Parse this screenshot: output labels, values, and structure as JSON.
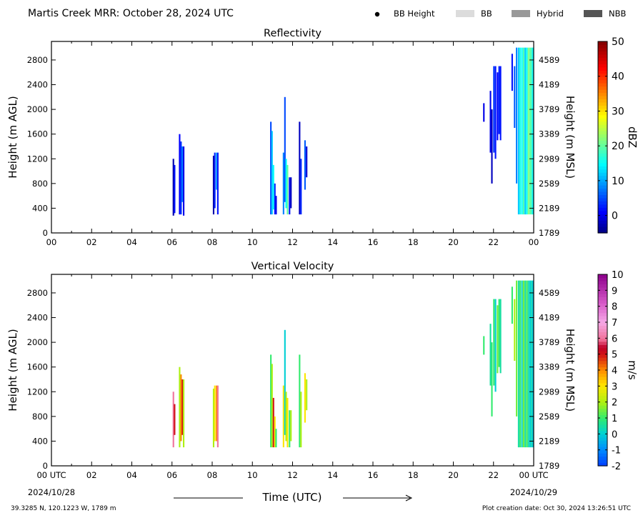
{
  "header": {
    "title": "Martis Creek MRR:  October 28, 2024 UTC"
  },
  "legend": {
    "placement": "top-right",
    "items": [
      {
        "label": "BB Height",
        "kind": "dot",
        "color": "#000000"
      },
      {
        "label": "BB",
        "kind": "swatch",
        "color": "#dcdcdc"
      },
      {
        "label": "Hybrid",
        "kind": "swatch",
        "color": "#999999"
      },
      {
        "label": "NBB",
        "kind": "swatch",
        "color": "#555555"
      }
    ]
  },
  "footer": {
    "location": "39.3285 N, 120.1223 W, 1789 m",
    "creation": "Plot creation date: Oct 30, 2024 13:26:51 UTC",
    "xlabel": "Time (UTC)",
    "start_date": "2024/10/28",
    "end_date": "2024/10/29"
  },
  "chart_data": [
    {
      "type": "heatmap",
      "title": "Reflectivity",
      "ylabel": "Height (m AGL)",
      "y2label": "Height (m MSL)",
      "xlim": [
        0,
        24
      ],
      "ylim": [
        0,
        3100
      ],
      "xticks": [
        "00",
        "02",
        "04",
        "06",
        "08",
        "10",
        "12",
        "14",
        "16",
        "18",
        "20",
        "22",
        "00"
      ],
      "yticks": [
        0,
        400,
        800,
        1200,
        1600,
        2000,
        2400,
        2800
      ],
      "y2ticks": [
        1789,
        2189,
        2589,
        2989,
        3389,
        3789,
        4189,
        4589
      ],
      "colorbar": {
        "label": "dBZ",
        "min": -5,
        "max": 50,
        "ticks": [
          0,
          10,
          20,
          30,
          40,
          50
        ]
      },
      "grid": false,
      "columns": [
        {
          "t": 6.07,
          "y0": 280,
          "y1": 1200,
          "v": -3
        },
        {
          "t": 6.13,
          "y0": 320,
          "y1": 1100,
          "v": 2
        },
        {
          "t": 6.38,
          "y0": 300,
          "y1": 1600,
          "v": 1
        },
        {
          "t": 6.45,
          "y0": 300,
          "y1": 1480,
          "v": 4
        },
        {
          "t": 6.52,
          "y0": 500,
          "y1": 1400,
          "v": 8
        },
        {
          "t": 6.58,
          "y0": 280,
          "y1": 1400,
          "v": 0
        },
        {
          "t": 8.07,
          "y0": 300,
          "y1": 1250,
          "v": -3
        },
        {
          "t": 8.13,
          "y0": 400,
          "y1": 1300,
          "v": 3
        },
        {
          "t": 8.22,
          "y0": 700,
          "y1": 1300,
          "v": 10
        },
        {
          "t": 8.28,
          "y0": 300,
          "y1": 1300,
          "v": 2
        },
        {
          "t": 10.92,
          "y0": 300,
          "y1": 1800,
          "v": 5
        },
        {
          "t": 10.98,
          "y0": 300,
          "y1": 1650,
          "v": 12
        },
        {
          "t": 11.05,
          "y0": 380,
          "y1": 1100,
          "v": 15
        },
        {
          "t": 11.12,
          "y0": 300,
          "y1": 800,
          "v": 3
        },
        {
          "t": 11.18,
          "y0": 300,
          "y1": 600,
          "v": 0
        },
        {
          "t": 11.55,
          "y0": 300,
          "y1": 1300,
          "v": 8
        },
        {
          "t": 11.62,
          "y0": 500,
          "y1": 2200,
          "v": 5
        },
        {
          "t": 11.68,
          "y0": 400,
          "y1": 1200,
          "v": 15
        },
        {
          "t": 11.75,
          "y0": 300,
          "y1": 1100,
          "v": 20
        },
        {
          "t": 11.85,
          "y0": 300,
          "y1": 900,
          "v": 2
        },
        {
          "t": 11.92,
          "y0": 400,
          "y1": 900,
          "v": -2
        },
        {
          "t": 12.35,
          "y0": 300,
          "y1": 1800,
          "v": -2
        },
        {
          "t": 12.42,
          "y0": 300,
          "y1": 1200,
          "v": 3
        },
        {
          "t": 12.62,
          "y0": 700,
          "y1": 1500,
          "v": 6
        },
        {
          "t": 12.7,
          "y0": 900,
          "y1": 1400,
          "v": -1
        },
        {
          "t": 21.52,
          "y0": 1800,
          "y1": 2100,
          "v": 0
        },
        {
          "t": 21.85,
          "y0": 1300,
          "y1": 2300,
          "v": 0
        },
        {
          "t": 21.92,
          "y0": 800,
          "y1": 2000,
          "v": -2
        },
        {
          "t": 22.02,
          "y0": 1300,
          "y1": 2700,
          "v": 4
        },
        {
          "t": 22.1,
          "y0": 1200,
          "y1": 2700,
          "v": 2
        },
        {
          "t": 22.2,
          "y0": 1500,
          "y1": 2600,
          "v": 1
        },
        {
          "t": 22.28,
          "y0": 1600,
          "y1": 2700,
          "v": 3
        },
        {
          "t": 22.35,
          "y0": 1500,
          "y1": 2700,
          "v": 2
        },
        {
          "t": 22.93,
          "y0": 2300,
          "y1": 2900,
          "v": 2
        },
        {
          "t": 23.05,
          "y0": 1700,
          "y1": 2700,
          "v": 6
        },
        {
          "t": 23.15,
          "y0": 800,
          "y1": 3000,
          "v": 8
        },
        {
          "t": 23.25,
          "y0": 300,
          "y1": 3000,
          "v": 12
        },
        {
          "t": 23.33,
          "y0": 300,
          "y1": 3000,
          "v": 16
        },
        {
          "t": 23.42,
          "y0": 300,
          "y1": 3000,
          "v": 15
        },
        {
          "t": 23.5,
          "y0": 300,
          "y1": 3000,
          "v": 19
        },
        {
          "t": 23.58,
          "y0": 300,
          "y1": 3000,
          "v": 12
        },
        {
          "t": 23.66,
          "y0": 300,
          "y1": 3000,
          "v": 15
        },
        {
          "t": 23.74,
          "y0": 300,
          "y1": 3000,
          "v": 22
        },
        {
          "t": 23.82,
          "y0": 300,
          "y1": 3000,
          "v": 20
        },
        {
          "t": 23.9,
          "y0": 300,
          "y1": 3000,
          "v": 18
        },
        {
          "t": 23.97,
          "y0": 300,
          "y1": 3000,
          "v": 14
        }
      ]
    },
    {
      "type": "heatmap",
      "title": "Vertical Velocity",
      "ylabel": "Height (m AGL)",
      "y2label": "Height (m MSL)",
      "xlim": [
        0,
        24
      ],
      "ylim": [
        0,
        3100
      ],
      "xticks": [
        "00 UTC",
        "02",
        "04",
        "06",
        "08",
        "10",
        "12",
        "14",
        "16",
        "18",
        "20",
        "22",
        "00 UTC"
      ],
      "yticks": [
        0,
        400,
        800,
        1200,
        1600,
        2000,
        2400,
        2800
      ],
      "y2ticks": [
        1789,
        2189,
        2589,
        2989,
        3389,
        3789,
        4189,
        4589
      ],
      "colorbar": {
        "label": "m/s",
        "min": -2,
        "max": 10,
        "ticks": [
          -2,
          -1,
          0,
          1,
          2,
          3,
          4,
          5,
          6,
          7,
          8,
          9,
          10
        ]
      },
      "grid": false,
      "columns": [
        {
          "t": 6.07,
          "y0": 300,
          "y1": 1200,
          "v": 6
        },
        {
          "t": 6.13,
          "y0": 500,
          "y1": 1000,
          "v": 5
        },
        {
          "t": 6.38,
          "y0": 300,
          "y1": 1600,
          "v": 2
        },
        {
          "t": 6.45,
          "y0": 400,
          "y1": 1480,
          "v": 4
        },
        {
          "t": 6.52,
          "y0": 500,
          "y1": 1400,
          "v": 5
        },
        {
          "t": 6.58,
          "y0": 300,
          "y1": 1400,
          "v": 2
        },
        {
          "t": 8.07,
          "y0": 300,
          "y1": 1250,
          "v": 2
        },
        {
          "t": 8.13,
          "y0": 400,
          "y1": 1300,
          "v": 3
        },
        {
          "t": 8.22,
          "y0": 400,
          "y1": 1300,
          "v": 4
        },
        {
          "t": 8.28,
          "y0": 300,
          "y1": 1300,
          "v": 6
        },
        {
          "t": 10.92,
          "y0": 300,
          "y1": 1800,
          "v": 1
        },
        {
          "t": 10.98,
          "y0": 300,
          "y1": 1650,
          "v": 2
        },
        {
          "t": 11.05,
          "y0": 300,
          "y1": 1100,
          "v": 5
        },
        {
          "t": 11.12,
          "y0": 300,
          "y1": 800,
          "v": 3
        },
        {
          "t": 11.18,
          "y0": 300,
          "y1": 600,
          "v": 1
        },
        {
          "t": 11.55,
          "y0": 300,
          "y1": 1300,
          "v": 3
        },
        {
          "t": 11.62,
          "y0": 500,
          "y1": 2200,
          "v": 0
        },
        {
          "t": 11.68,
          "y0": 400,
          "y1": 1200,
          "v": 2
        },
        {
          "t": 11.75,
          "y0": 300,
          "y1": 1100,
          "v": 3
        },
        {
          "t": 11.85,
          "y0": 300,
          "y1": 900,
          "v": 1
        },
        {
          "t": 11.92,
          "y0": 400,
          "y1": 900,
          "v": 2
        },
        {
          "t": 12.35,
          "y0": 300,
          "y1": 1800,
          "v": 1
        },
        {
          "t": 12.42,
          "y0": 300,
          "y1": 1200,
          "v": 2
        },
        {
          "t": 12.62,
          "y0": 700,
          "y1": 1500,
          "v": 3
        },
        {
          "t": 12.7,
          "y0": 900,
          "y1": 1400,
          "v": 2
        },
        {
          "t": 21.52,
          "y0": 1800,
          "y1": 2100,
          "v": 1
        },
        {
          "t": 21.85,
          "y0": 1300,
          "y1": 2300,
          "v": 0.5
        },
        {
          "t": 21.92,
          "y0": 800,
          "y1": 2000,
          "v": 1
        },
        {
          "t": 22.02,
          "y0": 1300,
          "y1": 2700,
          "v": 1
        },
        {
          "t": 22.1,
          "y0": 1200,
          "y1": 2700,
          "v": 0
        },
        {
          "t": 22.2,
          "y0": 1500,
          "y1": 2600,
          "v": 1.5
        },
        {
          "t": 22.28,
          "y0": 1600,
          "y1": 2700,
          "v": 1
        },
        {
          "t": 22.35,
          "y0": 1500,
          "y1": 2700,
          "v": 0.5
        },
        {
          "t": 22.93,
          "y0": 2300,
          "y1": 2900,
          "v": 1
        },
        {
          "t": 23.05,
          "y0": 1700,
          "y1": 2700,
          "v": 2
        },
        {
          "t": 23.15,
          "y0": 800,
          "y1": 3000,
          "v": 1.5
        },
        {
          "t": 23.25,
          "y0": 300,
          "y1": 3000,
          "v": 0.5
        },
        {
          "t": 23.33,
          "y0": 300,
          "y1": 3000,
          "v": 1
        },
        {
          "t": 23.42,
          "y0": 300,
          "y1": 3000,
          "v": 0.2
        },
        {
          "t": 23.5,
          "y0": 300,
          "y1": 3000,
          "v": 1.5
        },
        {
          "t": 23.58,
          "y0": 300,
          "y1": 3000,
          "v": 0.5
        },
        {
          "t": 23.66,
          "y0": 300,
          "y1": 3000,
          "v": 1.2
        },
        {
          "t": 23.74,
          "y0": 300,
          "y1": 3000,
          "v": 0.4
        },
        {
          "t": 23.82,
          "y0": 300,
          "y1": 3000,
          "v": 0
        },
        {
          "t": 23.9,
          "y0": 300,
          "y1": 3000,
          "v": 0.3
        },
        {
          "t": 23.97,
          "y0": 300,
          "y1": 3000,
          "v": -0.2
        }
      ]
    }
  ]
}
